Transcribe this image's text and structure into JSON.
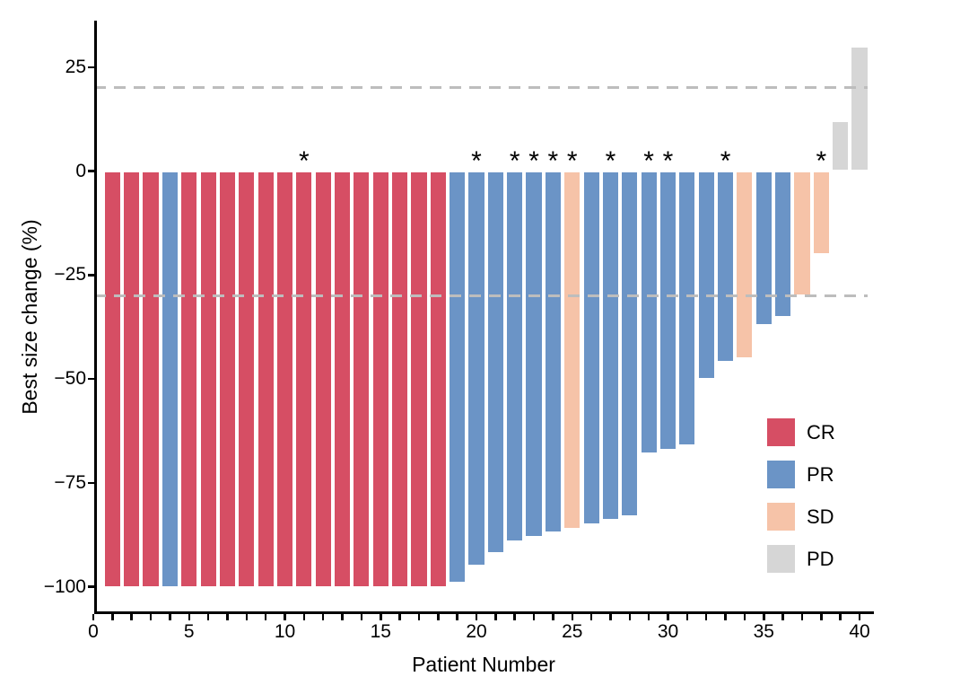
{
  "chart_data": {
    "type": "bar",
    "title": "",
    "xlabel": "Patient Number",
    "ylabel": "Best size change (%)",
    "xlim": [
      0,
      40.75
    ],
    "ylim": [
      -106,
      36
    ],
    "grid": false,
    "categories": [
      1,
      2,
      3,
      4,
      5,
      6,
      7,
      8,
      9,
      10,
      11,
      12,
      13,
      14,
      15,
      16,
      17,
      18,
      19,
      20,
      21,
      22,
      23,
      24,
      25,
      26,
      27,
      28,
      29,
      30,
      31,
      32,
      33,
      34,
      35,
      36,
      37,
      38,
      39,
      40
    ],
    "values": [
      -100,
      -100,
      -100,
      -100,
      -100,
      -100,
      -100,
      -100,
      -100,
      -100,
      -100,
      -100,
      -100,
      -100,
      -100,
      -100,
      -100,
      -100,
      -99,
      -95,
      -92,
      -89,
      -88,
      -87,
      -86,
      -85,
      -84,
      -83,
      -68,
      -67,
      -66,
      -50,
      -46,
      -45,
      -37,
      -35,
      -30,
      -20,
      12,
      30
    ],
    "response": [
      "CR",
      "CR",
      "CR",
      "PR",
      "CR",
      "CR",
      "CR",
      "CR",
      "CR",
      "CR",
      "CR",
      "CR",
      "CR",
      "CR",
      "CR",
      "CR",
      "CR",
      "CR",
      "PR",
      "PR",
      "PR",
      "PR",
      "PR",
      "PR",
      "SD",
      "PR",
      "PR",
      "PR",
      "PR",
      "PR",
      "PR",
      "PR",
      "PR",
      "SD",
      "PR",
      "PR",
      "SD",
      "SD",
      "PD",
      "PD"
    ],
    "asterisk_patients": [
      11,
      20,
      22,
      23,
      24,
      25,
      27,
      29,
      30,
      33,
      38
    ],
    "asterisk_symbol": "*",
    "reference_lines": {
      "values": [
        20,
        -30
      ],
      "style": "dashed",
      "color": "#bdbdbd"
    },
    "x_ticks": {
      "values": [
        0,
        5,
        10,
        15,
        20,
        25,
        30,
        35,
        40
      ],
      "labels": [
        "0",
        "5",
        "10",
        "15",
        "20",
        "25",
        "30",
        "35",
        "40"
      ],
      "minor_every": 1
    },
    "y_ticks": {
      "values": [
        25,
        0,
        -25,
        -50,
        -75,
        -100
      ],
      "labels": [
        "25",
        "0",
        "−25",
        "−50",
        "−75",
        "−100"
      ]
    },
    "colors": {
      "CR": "#d64e64",
      "PR": "#6b94c6",
      "SD": "#f6c3a8",
      "PD": "#d6d6d6"
    },
    "legend": {
      "position": "right-lower",
      "entries": [
        {
          "key": "CR",
          "label": "CR",
          "color": "#d64e64"
        },
        {
          "key": "PR",
          "label": "PR",
          "color": "#6b94c6"
        },
        {
          "key": "SD",
          "label": "SD",
          "color": "#f6c3a8"
        },
        {
          "key": "PD",
          "label": "PD",
          "color": "#d6d6d6"
        }
      ]
    }
  }
}
